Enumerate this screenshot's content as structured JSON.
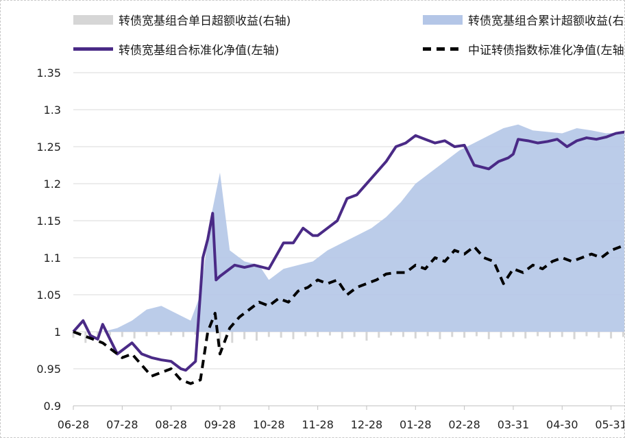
{
  "chart_data": {
    "type": "line",
    "title": "",
    "xlabel": "",
    "ylabel": "",
    "ylim": [
      0.9,
      1.35
    ],
    "yticks": [
      "1.35",
      "1.3",
      "1.25",
      "1.2",
      "1.15",
      "1.1",
      "1.05",
      "1",
      "0.95",
      "0.9"
    ],
    "x_tick_labels": [
      "06-28",
      "07-28",
      "08-28",
      "09-28",
      "10-28",
      "11-28",
      "12-28",
      "01-28",
      "02-28",
      "03-31",
      "04-30",
      "05-31"
    ],
    "grid": true,
    "legend_position": "top",
    "legend": [
      "转债宽基组合单日超额收益(右轴)",
      "转债宽基组合累计超额收益(右轴)",
      "转债宽基组合标准化净值(左轴)",
      "中证转债指数标准化净值(左轴)"
    ],
    "series": [
      {
        "name": "转债宽基组合标准化净值(左轴)",
        "axis": "left",
        "color": "#4a2a86",
        "x": [
          0,
          0.2,
          0.35,
          0.5,
          0.6,
          0.75,
          0.9,
          1.0,
          1.2,
          1.4,
          1.6,
          1.8,
          2.0,
          2.2,
          2.3,
          2.5,
          2.65,
          2.75,
          2.85,
          2.92,
          3.0,
          3.1,
          3.3,
          3.5,
          3.7,
          4.0,
          4.3,
          4.5,
          4.7,
          4.9,
          5.0,
          5.2,
          5.4,
          5.6,
          5.8,
          6.0,
          6.2,
          6.4,
          6.6,
          6.8,
          7.0,
          7.2,
          7.4,
          7.6,
          7.8,
          8.0,
          8.2,
          8.5,
          8.7,
          8.9,
          9.0,
          9.1,
          9.3,
          9.5,
          9.7,
          9.9,
          10.1,
          10.3,
          10.5,
          10.7,
          10.9,
          11.1,
          11.3
        ],
        "values": [
          1.0,
          1.015,
          0.995,
          0.99,
          1.01,
          0.99,
          0.97,
          0.975,
          0.985,
          0.97,
          0.965,
          0.962,
          0.96,
          0.95,
          0.948,
          0.96,
          1.1,
          1.125,
          1.16,
          1.07,
          1.075,
          1.08,
          1.09,
          1.087,
          1.09,
          1.085,
          1.12,
          1.12,
          1.14,
          1.13,
          1.13,
          1.14,
          1.15,
          1.18,
          1.185,
          1.2,
          1.215,
          1.23,
          1.25,
          1.255,
          1.265,
          1.26,
          1.255,
          1.258,
          1.25,
          1.252,
          1.225,
          1.22,
          1.23,
          1.235,
          1.24,
          1.26,
          1.258,
          1.255,
          1.257,
          1.26,
          1.25,
          1.258,
          1.262,
          1.26,
          1.263,
          1.268,
          1.27
        ]
      },
      {
        "name": "中证转债指数标准化净值(左轴)",
        "axis": "left",
        "color": "#000000",
        "x": [
          0,
          0.2,
          0.4,
          0.6,
          0.8,
          1.0,
          1.2,
          1.4,
          1.6,
          1.8,
          2.0,
          2.2,
          2.4,
          2.6,
          2.75,
          2.9,
          3.0,
          3.2,
          3.4,
          3.6,
          3.8,
          4.0,
          4.2,
          4.4,
          4.6,
          4.8,
          5.0,
          5.2,
          5.4,
          5.6,
          5.8,
          6.0,
          6.2,
          6.4,
          6.6,
          6.8,
          7.0,
          7.2,
          7.4,
          7.6,
          7.8,
          8.0,
          8.2,
          8.4,
          8.6,
          8.8,
          9.0,
          9.2,
          9.4,
          9.6,
          9.8,
          10.0,
          10.2,
          10.4,
          10.6,
          10.8,
          11.0,
          11.2,
          11.3
        ],
        "values": [
          1.0,
          0.995,
          0.99,
          0.985,
          0.975,
          0.965,
          0.97,
          0.955,
          0.94,
          0.945,
          0.95,
          0.935,
          0.93,
          0.935,
          1.0,
          1.025,
          0.97,
          1.005,
          1.02,
          1.03,
          1.04,
          1.035,
          1.045,
          1.04,
          1.055,
          1.06,
          1.07,
          1.065,
          1.07,
          1.05,
          1.06,
          1.065,
          1.07,
          1.078,
          1.08,
          1.08,
          1.09,
          1.085,
          1.1,
          1.095,
          1.11,
          1.105,
          1.115,
          1.1,
          1.095,
          1.065,
          1.085,
          1.08,
          1.09,
          1.085,
          1.095,
          1.1,
          1.095,
          1.1,
          1.105,
          1.1,
          1.11,
          1.115,
          1.115
        ]
      },
      {
        "name": "转债宽基组合累计超额收益(右轴)",
        "axis": "right",
        "color": "#b4c6e7",
        "x": [
          0,
          0.3,
          0.6,
          0.9,
          1.2,
          1.5,
          1.8,
          2.1,
          2.4,
          2.6,
          2.8,
          3.0,
          3.2,
          3.5,
          3.8,
          4.0,
          4.3,
          4.6,
          4.9,
          5.2,
          5.5,
          5.8,
          6.1,
          6.4,
          6.7,
          7.0,
          7.3,
          7.6,
          7.9,
          8.2,
          8.5,
          8.8,
          9.1,
          9.4,
          9.7,
          10.0,
          10.3,
          10.6,
          10.9,
          11.3
        ],
        "values": [
          1.0,
          1.0,
          1.0,
          1.005,
          1.015,
          1.03,
          1.035,
          1.025,
          1.015,
          1.05,
          1.15,
          1.215,
          1.11,
          1.095,
          1.09,
          1.07,
          1.085,
          1.09,
          1.095,
          1.11,
          1.12,
          1.13,
          1.14,
          1.155,
          1.175,
          1.2,
          1.215,
          1.23,
          1.245,
          1.255,
          1.265,
          1.275,
          1.28,
          1.272,
          1.27,
          1.268,
          1.275,
          1.272,
          1.268,
          1.27
        ]
      },
      {
        "name": "转债宽基组合单日超额收益(右轴)",
        "axis": "right",
        "color": "#d6d6d6",
        "x": [
          0.0,
          0.25,
          0.5,
          0.75,
          1.0,
          1.25,
          1.5,
          1.75,
          2.0,
          2.25,
          2.5,
          2.75,
          3.0,
          3.25,
          3.5,
          3.75,
          4.0,
          4.25,
          4.5,
          4.75,
          5.0,
          5.25,
          5.5,
          5.75,
          6.0,
          6.25,
          6.5,
          6.75,
          7.0,
          7.25,
          7.5,
          7.75,
          8.0,
          8.25,
          8.5,
          8.75,
          9.0,
          9.25,
          9.5,
          9.75,
          10.0,
          10.25,
          10.5,
          10.75,
          11.0,
          11.25
        ],
        "values": [
          0.992,
          0.985,
          0.99,
          0.995,
          0.993,
          0.991,
          0.994,
          0.996,
          0.995,
          0.993,
          0.996,
          0.994,
          0.975,
          0.985,
          0.99,
          0.988,
          0.993,
          0.992,
          0.99,
          0.994,
          0.993,
          0.995,
          0.991,
          0.993,
          0.988,
          0.992,
          0.995,
          0.993,
          0.991,
          0.994,
          0.99,
          0.993,
          0.992,
          0.994,
          0.99,
          0.992,
          0.993,
          0.991,
          0.994,
          0.992,
          0.993,
          0.99,
          0.994,
          0.992,
          0.991,
          0.993
        ]
      }
    ]
  }
}
